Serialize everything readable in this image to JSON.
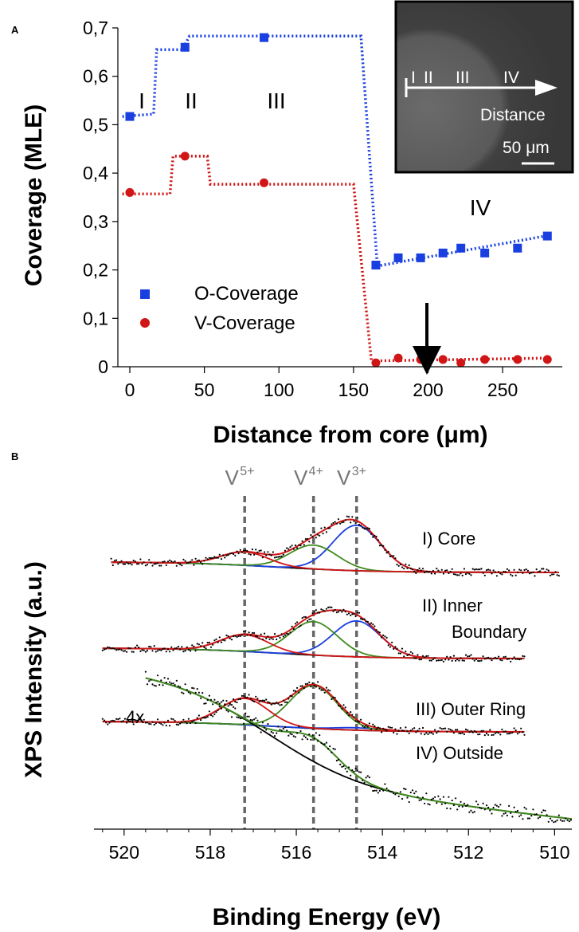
{
  "panel_a": {
    "label": "A",
    "inset": {
      "regions": [
        "I",
        "II",
        "III",
        "IV"
      ],
      "arrow_label": "Distance",
      "scale_label": "50 μm"
    },
    "annotations": {
      "region_I": "I",
      "region_II": "II",
      "region_III": "III",
      "region_IV": "IV"
    }
  },
  "panel_b": {
    "label": "B",
    "multiplier": "4x"
  },
  "chart_data": [
    {
      "type": "scatter",
      "title": "",
      "xlabel": "Distance from core (μm)",
      "ylabel": "Coverage (MLE)",
      "xlim": [
        -8,
        290
      ],
      "ylim": [
        0,
        0.7
      ],
      "xticks": [
        "0",
        "50",
        "100",
        "150",
        "200",
        "250"
      ],
      "xtick_values": [
        0,
        50,
        100,
        150,
        200,
        250
      ],
      "yticks": [
        "0",
        "0,1",
        "0,2",
        "0,3",
        "0,4",
        "0,5",
        "0,6",
        "0,7"
      ],
      "ytick_values": [
        0,
        0.1,
        0.2,
        0.3,
        0.4,
        0.5,
        0.6,
        0.7
      ],
      "legend": {
        "position": "center-left"
      },
      "series": [
        {
          "name": "O-Coverage",
          "marker": "square",
          "color": "#1a3fe0",
          "x": [
            0,
            37,
            90,
            165,
            180,
            195,
            210,
            222,
            238,
            260,
            280
          ],
          "y": [
            0.517,
            0.66,
            0.68,
            0.21,
            0.225,
            0.225,
            0.235,
            0.245,
            0.235,
            0.245,
            0.27
          ],
          "fit_x": [
            -5,
            16,
            18,
            35,
            37,
            40,
            155,
            166,
            282
          ],
          "fit_y": [
            0.517,
            0.522,
            0.655,
            0.655,
            0.665,
            0.683,
            0.683,
            0.208,
            0.272
          ]
        },
        {
          "name": "V-Coverage",
          "marker": "circle",
          "color": "#d01616",
          "x": [
            0,
            37,
            90,
            165,
            180,
            195,
            210,
            222,
            238,
            260,
            280
          ],
          "y": [
            0.36,
            0.435,
            0.38,
            0.008,
            0.018,
            0.015,
            0.015,
            0.008,
            0.015,
            0.015,
            0.015
          ],
          "fit_x": [
            -5,
            27,
            29,
            52,
            54,
            150,
            162,
            282
          ],
          "fit_y": [
            0.357,
            0.357,
            0.435,
            0.435,
            0.377,
            0.377,
            0.012,
            0.018
          ]
        }
      ]
    },
    {
      "type": "line",
      "title": "",
      "xlabel": "Binding Energy (eV)",
      "ylabel": "XPS Intensity (a.u.)",
      "xlim": [
        520.7,
        509.6
      ],
      "xticks": [
        "520",
        "518",
        "516",
        "514",
        "512",
        "510"
      ],
      "xtick_values": [
        520,
        518,
        516,
        514,
        512,
        510
      ],
      "reference_lines": [
        {
          "label_base": "V",
          "label_sup": "5+",
          "x": 517.2
        },
        {
          "label_base": "V",
          "label_sup": "4+",
          "x": 515.6
        },
        {
          "label_base": "V",
          "label_sup": "3+",
          "x": 514.6
        }
      ],
      "spectra": [
        {
          "name": "I) Core",
          "x_start": 520.3,
          "x_end": 509.9,
          "blue": 0.95,
          "green": 0.5,
          "red": 0.28,
          "bg_step": 0.22
        },
        {
          "name": "II) Inner Boundary",
          "label_line1": "II) Inner",
          "label_line2": "Boundary",
          "x_start": 520.5,
          "x_end": 510.7,
          "blue": 0.75,
          "green": 0.7,
          "red": 0.35,
          "bg_step": 0.22
        },
        {
          "name": "III) Outer Ring",
          "x_start": 520.5,
          "x_end": 510.7,
          "blue": 0.05,
          "green": 0.9,
          "red": 0.55,
          "bg_step": 0.22
        },
        {
          "name": "IV) Outside",
          "x_start": 519.5,
          "x_end": 509.6,
          "green": 0.25,
          "bg_step": 1.0
        }
      ],
      "colors": {
        "envelope": "#d01616",
        "blue_peak": "#1a3fe0",
        "green_peak": "#3f8a1e",
        "background": "#000000",
        "data": "#000000"
      }
    }
  ]
}
